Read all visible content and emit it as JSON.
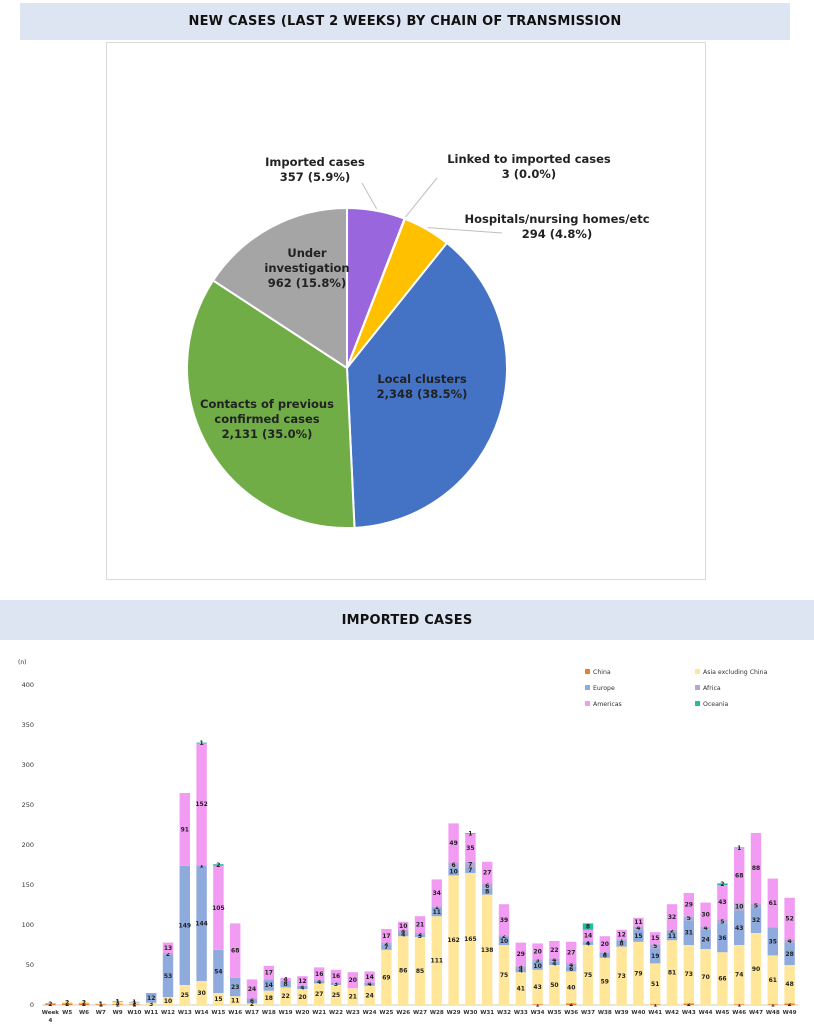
{
  "pie_title": "NEW CASES (LAST 2 WEEKS) BY CHAIN OF TRANSMISSION",
  "bar_title": "IMPORTED CASES",
  "chart_data": [
    {
      "type": "pie",
      "title": "NEW CASES (LAST 2 WEEKS) BY CHAIN OF TRANSMISSION",
      "slices": [
        {
          "label": "Local clusters",
          "display": "2,348 (38.5%)",
          "value": 2348,
          "percent": 38.5,
          "color": "#4472c4"
        },
        {
          "label": "Contacts of previous confirmed cases",
          "display": "2,131 (35.0%)",
          "value": 2131,
          "percent": 35.0,
          "color": "#70ad47"
        },
        {
          "label": "Under investigation",
          "display": "962 (15.8%)",
          "value": 962,
          "percent": 15.8,
          "color": "#a5a5a5"
        },
        {
          "label": "Imported cases",
          "display": "357 (5.9%)",
          "value": 357,
          "percent": 5.9,
          "color": "#9966dd"
        },
        {
          "label": "Linked to imported cases",
          "display": "3 (0.0%)",
          "value": 3,
          "percent": 0.0,
          "color": "#ffc000"
        },
        {
          "label": "Hospitals/nursing homes/etc",
          "display": "294 (4.8%)",
          "value": 294,
          "percent": 4.8,
          "color": "#ffc000"
        }
      ]
    },
    {
      "type": "bar",
      "stacked": true,
      "title": "IMPORTED CASES",
      "ylabel": "(n)",
      "ylim": [
        0,
        400
      ],
      "yticks": [
        0,
        50,
        100,
        150,
        200,
        250,
        300,
        350,
        400
      ],
      "legend_position": "top-right",
      "categories": [
        "Week 4",
        "W5",
        "W6",
        "W7",
        "W9",
        "W10",
        "W11",
        "W12",
        "W13",
        "W14",
        "W15",
        "W16",
        "W17",
        "W18",
        "W19",
        "W20",
        "W21",
        "W22",
        "W23",
        "W24",
        "W25",
        "W26",
        "W27",
        "W28",
        "W29",
        "W30",
        "W31",
        "W32",
        "W33",
        "W34",
        "W35",
        "W36",
        "W37",
        "W38",
        "W39",
        "W40",
        "W41",
        "W42",
        "W43",
        "W44",
        "W45",
        "W46",
        "W47",
        "W48",
        "W49"
      ],
      "series": [
        {
          "name": "China",
          "color": "#ed7d31",
          "values": [
            2,
            2,
            2,
            1,
            1,
            1,
            0,
            0,
            0,
            0,
            0,
            0,
            0,
            0,
            0,
            0,
            0,
            0,
            0,
            0,
            0,
            0,
            0,
            0,
            0,
            0,
            0,
            0,
            0,
            1,
            0,
            2,
            0,
            0,
            0,
            0,
            1,
            0,
            2,
            0,
            0,
            1,
            0,
            1,
            2
          ]
        },
        {
          "name": "Asia excluding China",
          "color": "#ffe699",
          "values": [
            0,
            2,
            2,
            1,
            3,
            2,
            3,
            10,
            25,
            30,
            15,
            11,
            2,
            18,
            22,
            20,
            27,
            25,
            21,
            24,
            69,
            86,
            85,
            111,
            162,
            165,
            138,
            75,
            41,
            43,
            50,
            40,
            75,
            59,
            73,
            79,
            51,
            81,
            73,
            70,
            66,
            74,
            90,
            61,
            48
          ]
        },
        {
          "name": "Europe",
          "color": "#8faadc",
          "values": [
            0,
            0,
            0,
            0,
            1,
            1,
            12,
            53,
            149,
            144,
            54,
            23,
            6,
            14,
            8,
            4,
            4,
            3,
            0,
            4,
            7,
            4,
            3,
            11,
            10,
            7,
            8,
            10,
            4,
            10,
            4,
            6,
            4,
            6,
            8,
            15,
            19,
            11,
            31,
            24,
            36,
            43,
            32,
            35,
            28
          ]
        },
        {
          "name": "Africa",
          "color": "#b4a7d6",
          "values": [
            0,
            0,
            0,
            0,
            0,
            0,
            0,
            2,
            0,
            1,
            0,
            0,
            0,
            0,
            0,
            0,
            0,
            0,
            0,
            0,
            2,
            4,
            2,
            1,
            6,
            7,
            6,
            2,
            4,
            3,
            4,
            4,
            1,
            1,
            1,
            4,
            5,
            2,
            5,
            4,
            5,
            10,
            5,
            0,
            4
          ]
        },
        {
          "name": "Americas",
          "color": "#f29bf2",
          "values": [
            0,
            0,
            0,
            0,
            0,
            0,
            0,
            13,
            91,
            152,
            105,
            68,
            24,
            17,
            4,
            12,
            16,
            16,
            20,
            14,
            17,
            10,
            21,
            34,
            49,
            35,
            27,
            39,
            29,
            20,
            22,
            27,
            14,
            20,
            12,
            11,
            15,
            32,
            29,
            30,
            43,
            68,
            88,
            61,
            52
          ]
        },
        {
          "name": "Oceania",
          "color": "#20c09a",
          "values": [
            0,
            0,
            0,
            0,
            0,
            0,
            0,
            0,
            0,
            1,
            2,
            0,
            0,
            0,
            0,
            0,
            0,
            0,
            0,
            0,
            0,
            0,
            0,
            0,
            0,
            1,
            0,
            0,
            0,
            0,
            0,
            0,
            8,
            0,
            0,
            0,
            0,
            0,
            0,
            0,
            2,
            1,
            0,
            0,
            0
          ]
        }
      ]
    }
  ]
}
